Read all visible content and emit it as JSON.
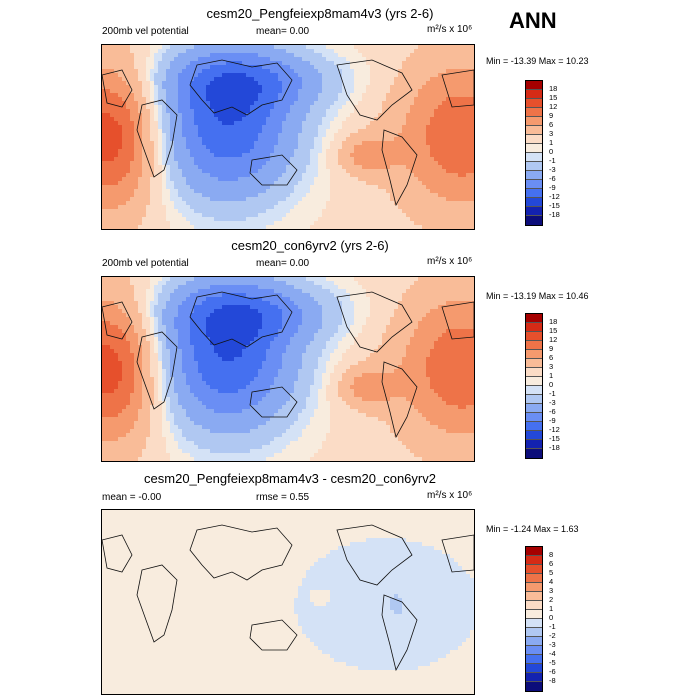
{
  "header": {
    "label": "ANN"
  },
  "panels": [
    {
      "title": "cesm20_Pengfeiexp8mam4v3 (yrs 2-6)",
      "left_label": "200mb vel potential",
      "mid_label": "mean=   0.00",
      "units": "m²/s x 10⁶",
      "minmax": "Min = -13.39 Max =  10.23",
      "field": "expA",
      "levels": [
        "18",
        "15",
        "12",
        "9",
        "6",
        "3",
        "1",
        "0",
        "-1",
        "-3",
        "-6",
        "-9",
        "-12",
        "-15",
        "-18"
      ]
    },
    {
      "title": "cesm20_con6yrv2 (yrs 2-6)",
      "left_label": "200mb vel potential",
      "mid_label": "mean=   0.00",
      "units": "m²/s x 10⁶",
      "minmax": "Min = -13.19 Max =  10.46",
      "field": "ctrl",
      "levels": [
        "18",
        "15",
        "12",
        "9",
        "6",
        "3",
        "1",
        "0",
        "-1",
        "-3",
        "-6",
        "-9",
        "-12",
        "-15",
        "-18"
      ]
    },
    {
      "title": "cesm20_Pengfeiexp8mam4v3 - cesm20_con6yrv2",
      "left_label": "mean =  -0.00",
      "mid_label": "rmse =   0.55",
      "units": "m²/s x 10⁶",
      "minmax": "Min =  -1.24 Max =   1.63",
      "field": "diff",
      "levels": [
        "8",
        "6",
        "5",
        "4",
        "3",
        "2",
        "1",
        "0",
        "-1",
        "-2",
        "-3",
        "-4",
        "-5",
        "-6",
        "-8"
      ]
    }
  ],
  "colors": {
    "scale": [
      "#a50000",
      "#d52b16",
      "#e6502c",
      "#ee7348",
      "#f59a6e",
      "#f9bc98",
      "#fbdcc6",
      "#f8ecde",
      "#d4e2f6",
      "#b0c8f2",
      "#8aaaf2",
      "#6a8ef4",
      "#4570f0",
      "#2348d8",
      "#1322b0",
      "#0c0d7a"
    ]
  }
}
